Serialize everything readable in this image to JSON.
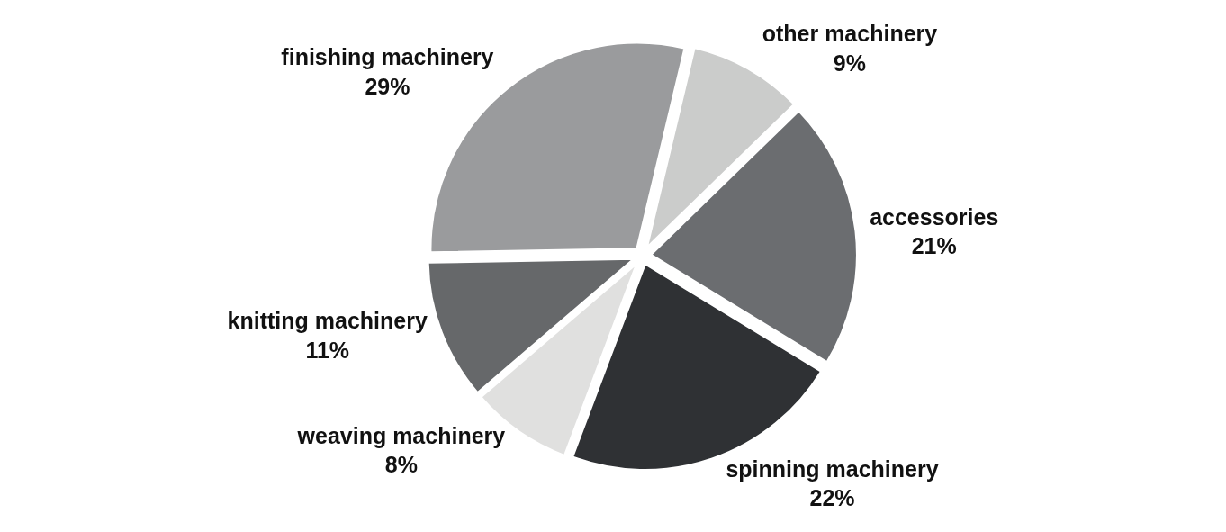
{
  "chart_data": {
    "type": "pie",
    "categories": [
      "finishing machinery",
      "other machinery",
      "accessories",
      "spinning machinery",
      "weaving machinery",
      "knitting machinery"
    ],
    "values": [
      29,
      9,
      21,
      22,
      8,
      11
    ],
    "value_labels": [
      "29%",
      "9%",
      "21%",
      "22%",
      "8%",
      "11%"
    ],
    "colors": [
      "#9a9b9d",
      "#cbcccb",
      "#6b6d70",
      "#2f3134",
      "#e0e0df",
      "#66686a"
    ],
    "legend": false
  }
}
